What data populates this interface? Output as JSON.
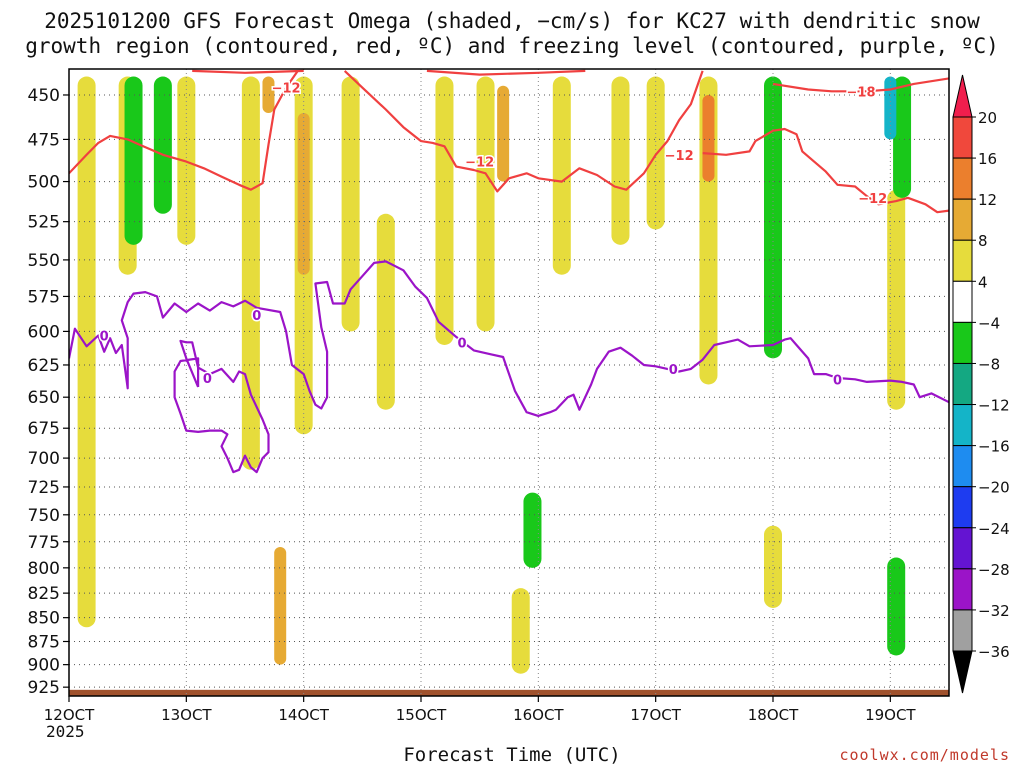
{
  "chart_data": {
    "type": "heatmap",
    "title": "2025101200 GFS Forecast Omega (shaded, −cm/s) for KC27 with dendritic snow",
    "subtitle": "growth region (contoured, red, ºC) and freezing level (contoured, purple, ºC)",
    "xlabel": "Forecast Time (UTC)",
    "x_year": "2025",
    "x_ticks": [
      "12OCT",
      "13OCT",
      "14OCT",
      "15OCT",
      "16OCT",
      "17OCT",
      "18OCT",
      "19OCT"
    ],
    "xlim": [
      0,
      7.5
    ],
    "y_ticks": [
      450,
      475,
      500,
      525,
      550,
      575,
      600,
      625,
      650,
      675,
      700,
      725,
      750,
      775,
      800,
      825,
      850,
      875,
      900,
      925
    ],
    "ylim": [
      436,
      935
    ],
    "y_axis": "pressure (hPa), reversed, log-p",
    "grid": true,
    "colorbar": {
      "levels": [
        "20",
        "16",
        "12",
        "8",
        "4",
        "−4",
        "−8",
        "−12",
        "−16",
        "−20",
        "−24",
        "−28",
        "−32",
        "−36"
      ],
      "colors": [
        "#f01e4d",
        "#f0483c",
        "#eb7f2d",
        "#e6aa34",
        "#e6dc3c",
        "#ffffff",
        "#19c81a",
        "#14a882",
        "#14b4c8",
        "#1e8cf0",
        "#1e3cf0",
        "#6414d2",
        "#9b14c8",
        "#a0a0a0",
        "#000000"
      ]
    },
    "shading_samples": [
      {
        "x": 0.15,
        "p0": 440,
        "p1": 860,
        "value": 5
      },
      {
        "x": 0.5,
        "p0": 440,
        "p1": 560,
        "value": 5
      },
      {
        "x": 0.55,
        "p0": 440,
        "p1": 540,
        "value": -6
      },
      {
        "x": 1.0,
        "p0": 440,
        "p1": 540,
        "value": 5
      },
      {
        "x": 1.55,
        "p0": 440,
        "p1": 710,
        "value": 5
      },
      {
        "x": 1.7,
        "p0": 440,
        "p1": 460,
        "value": 9
      },
      {
        "x": 2.0,
        "p0": 440,
        "p1": 680,
        "value": 6
      },
      {
        "x": 2.0,
        "p0": 460,
        "p1": 560,
        "value": 10
      },
      {
        "x": 2.4,
        "p0": 440,
        "p1": 600,
        "value": 5
      },
      {
        "x": 2.7,
        "p0": 520,
        "p1": 660,
        "value": 5
      },
      {
        "x": 3.2,
        "p0": 440,
        "p1": 610,
        "value": 6
      },
      {
        "x": 3.55,
        "p0": 440,
        "p1": 600,
        "value": 7
      },
      {
        "x": 3.7,
        "p0": 445,
        "p1": 500,
        "value": 10
      },
      {
        "x": 4.2,
        "p0": 440,
        "p1": 560,
        "value": 6
      },
      {
        "x": 4.7,
        "p0": 440,
        "p1": 540,
        "value": 6
      },
      {
        "x": 5.0,
        "p0": 440,
        "p1": 530,
        "value": 7
      },
      {
        "x": 5.45,
        "p0": 440,
        "p1": 640,
        "value": 6
      },
      {
        "x": 5.45,
        "p0": 450,
        "p1": 500,
        "value": 12
      },
      {
        "x": 6.0,
        "p0": 440,
        "p1": 620,
        "value": -6
      },
      {
        "x": 7.05,
        "p0": 505,
        "p1": 660,
        "value": 6
      },
      {
        "x": 7.1,
        "p0": 440,
        "p1": 510,
        "value": -6
      },
      {
        "x": 7.0,
        "p0": 440,
        "p1": 475,
        "value": -14
      },
      {
        "x": 7.05,
        "p0": 790,
        "p1": 890,
        "value": -6
      },
      {
        "x": 1.8,
        "p0": 780,
        "p1": 900,
        "value": 8
      },
      {
        "x": 3.85,
        "p0": 820,
        "p1": 910,
        "value": 5
      },
      {
        "x": 0.8,
        "p0": 440,
        "p1": 520,
        "value": -6
      },
      {
        "x": 6.0,
        "p0": 760,
        "p1": 840,
        "value": 5
      },
      {
        "x": 3.95,
        "p0": 730,
        "p1": 800,
        "value": -6
      }
    ],
    "series": [
      {
        "name": "-12",
        "color": "#f04040",
        "points": [
          [
            0,
            495
          ],
          [
            0.15,
            484
          ],
          [
            0.25,
            477
          ],
          [
            0.35,
            473
          ],
          [
            0.5,
            475
          ],
          [
            0.6,
            478
          ],
          [
            0.8,
            484
          ],
          [
            1.0,
            488
          ],
          [
            1.15,
            492
          ],
          [
            1.3,
            497
          ],
          [
            1.45,
            502
          ],
          [
            1.55,
            505
          ],
          [
            1.65,
            501
          ],
          [
            1.7,
            478
          ],
          [
            1.75,
            458
          ],
          [
            1.85,
            446
          ],
          [
            1.95,
            437
          ]
        ]
      },
      {
        "name": "-12",
        "color": "#f04040",
        "points": [
          [
            2.35,
            437
          ],
          [
            2.5,
            446
          ],
          [
            2.7,
            458
          ],
          [
            2.85,
            468
          ],
          [
            3.0,
            476
          ],
          [
            3.1,
            477
          ],
          [
            3.2,
            479
          ],
          [
            3.3,
            491
          ],
          [
            3.45,
            493
          ],
          [
            3.55,
            495
          ],
          [
            3.65,
            506
          ],
          [
            3.75,
            498
          ],
          [
            3.9,
            495
          ],
          [
            4.0,
            498
          ],
          [
            4.2,
            500
          ],
          [
            4.35,
            492
          ],
          [
            4.5,
            496
          ],
          [
            4.65,
            503
          ],
          [
            4.75,
            505
          ],
          [
            4.9,
            495
          ],
          [
            5.0,
            484
          ],
          [
            5.1,
            476
          ],
          [
            5.2,
            464
          ],
          [
            5.3,
            455
          ],
          [
            5.4,
            437
          ]
        ]
      },
      {
        "name": "-12",
        "color": "#f04040",
        "points": [
          [
            5.4,
            483
          ],
          [
            5.6,
            484
          ],
          [
            5.8,
            482
          ],
          [
            5.85,
            476
          ],
          [
            6.0,
            470
          ],
          [
            6.1,
            469
          ],
          [
            6.2,
            472
          ],
          [
            6.25,
            482
          ],
          [
            6.35,
            488
          ],
          [
            6.45,
            494
          ],
          [
            6.55,
            502
          ],
          [
            6.7,
            503
          ],
          [
            6.8,
            509
          ],
          [
            6.9,
            514
          ],
          [
            7.05,
            512
          ],
          [
            7.15,
            510
          ],
          [
            7.3,
            514
          ],
          [
            7.4,
            519
          ],
          [
            7.5,
            518
          ]
        ]
      },
      {
        "name": "-12",
        "color": "#f04040",
        "points": [
          [
            1.05,
            437
          ],
          [
            1.5,
            438
          ],
          [
            2.0,
            437
          ]
        ]
      },
      {
        "name": "-12",
        "color": "#f04040",
        "points": [
          [
            3.05,
            437
          ],
          [
            3.5,
            439
          ],
          [
            4.0,
            438
          ],
          [
            4.4,
            437
          ]
        ]
      },
      {
        "name": "-18",
        "color": "#f04040",
        "points": [
          [
            6.0,
            444
          ],
          [
            6.3,
            447
          ],
          [
            6.5,
            448
          ],
          [
            6.8,
            448
          ],
          [
            7.0,
            447
          ],
          [
            7.2,
            444
          ],
          [
            7.5,
            441
          ]
        ]
      },
      {
        "name": "0",
        "color": "#9b14c8",
        "points": [
          [
            0,
            620
          ],
          [
            0.05,
            598
          ],
          [
            0.15,
            611
          ],
          [
            0.25,
            603
          ],
          [
            0.3,
            615
          ],
          [
            0.35,
            605
          ],
          [
            0.4,
            616
          ],
          [
            0.45,
            610
          ],
          [
            0.5,
            643
          ],
          [
            0.5,
            605
          ],
          [
            0.45,
            592
          ],
          [
            0.5,
            579
          ],
          [
            0.55,
            573
          ],
          [
            0.65,
            572
          ],
          [
            0.75,
            575
          ],
          [
            0.8,
            590
          ],
          [
            0.9,
            580
          ],
          [
            1.0,
            586
          ],
          [
            1.1,
            580
          ],
          [
            1.2,
            585
          ],
          [
            1.3,
            579
          ],
          [
            1.4,
            582
          ],
          [
            1.5,
            578
          ],
          [
            1.6,
            583
          ],
          [
            1.8,
            586
          ],
          [
            1.85,
            600
          ],
          [
            1.9,
            625
          ],
          [
            2.0,
            632
          ],
          [
            2.05,
            645
          ],
          [
            2.1,
            656
          ],
          [
            2.15,
            659
          ],
          [
            2.2,
            650
          ],
          [
            2.2,
            615
          ],
          [
            2.15,
            597
          ],
          [
            2.1,
            566
          ],
          [
            2.2,
            565
          ],
          [
            2.25,
            580
          ],
          [
            2.35,
            580
          ],
          [
            2.4,
            570
          ],
          [
            2.5,
            561
          ],
          [
            2.6,
            552
          ],
          [
            2.7,
            551
          ],
          [
            2.85,
            557
          ],
          [
            2.95,
            568
          ],
          [
            3.05,
            576
          ],
          [
            3.15,
            593
          ],
          [
            3.3,
            604
          ],
          [
            3.45,
            614
          ],
          [
            3.6,
            617
          ],
          [
            3.7,
            619
          ],
          [
            3.8,
            645
          ],
          [
            3.9,
            662
          ],
          [
            4.0,
            665
          ],
          [
            4.1,
            662
          ],
          [
            4.15,
            660
          ],
          [
            4.25,
            650
          ],
          [
            4.3,
            648
          ],
          [
            4.35,
            660
          ],
          [
            4.45,
            640
          ],
          [
            4.5,
            628
          ],
          [
            4.6,
            615
          ],
          [
            4.7,
            612
          ],
          [
            4.8,
            618
          ],
          [
            4.9,
            625
          ],
          [
            5.0,
            626
          ],
          [
            5.1,
            628
          ],
          [
            5.2,
            630
          ],
          [
            5.3,
            628
          ],
          [
            5.4,
            621
          ],
          [
            5.5,
            610
          ],
          [
            5.6,
            608
          ],
          [
            5.7,
            606
          ],
          [
            5.8,
            611
          ],
          [
            6.0,
            610
          ],
          [
            6.1,
            606
          ],
          [
            6.15,
            605
          ],
          [
            6.2,
            610
          ],
          [
            6.3,
            620
          ],
          [
            6.35,
            632
          ],
          [
            6.45,
            632
          ],
          [
            6.55,
            635
          ],
          [
            6.7,
            636
          ],
          [
            6.8,
            638
          ],
          [
            7.0,
            637
          ],
          [
            7.1,
            638
          ],
          [
            7.2,
            640
          ],
          [
            7.25,
            650
          ],
          [
            7.35,
            647
          ],
          [
            7.5,
            654
          ]
        ]
      },
      {
        "name": "0",
        "color": "#9b14c8",
        "points": [
          [
            1.1,
            642
          ],
          [
            1.0,
            620
          ],
          [
            0.95,
            607
          ],
          [
            1.0,
            608
          ],
          [
            1.05,
            608
          ],
          [
            1.1,
            627
          ],
          [
            1.2,
            632
          ],
          [
            1.3,
            628
          ],
          [
            1.4,
            638
          ],
          [
            1.45,
            630
          ],
          [
            1.5,
            632
          ],
          [
            1.55,
            648
          ],
          [
            1.65,
            668
          ],
          [
            1.7,
            680
          ],
          [
            1.7,
            695
          ],
          [
            1.65,
            700
          ],
          [
            1.6,
            712
          ],
          [
            1.55,
            708
          ],
          [
            1.5,
            698
          ],
          [
            1.45,
            710
          ],
          [
            1.4,
            712
          ],
          [
            1.35,
            700
          ],
          [
            1.3,
            690
          ],
          [
            1.35,
            680
          ],
          [
            1.3,
            677
          ],
          [
            1.2,
            677
          ],
          [
            1.1,
            678
          ],
          [
            1.0,
            677
          ],
          [
            0.95,
            663
          ],
          [
            0.9,
            650
          ],
          [
            0.9,
            630
          ],
          [
            0.95,
            622
          ],
          [
            1.1,
            620
          ],
          [
            1.1,
            642
          ]
        ]
      }
    ],
    "contour_labels": [
      {
        "text": "0",
        "x": 0.3,
        "p": 603,
        "color": "#9b14c8"
      },
      {
        "text": "0",
        "x": 1.18,
        "p": 635,
        "color": "#9b14c8"
      },
      {
        "text": "0",
        "x": 1.6,
        "p": 588,
        "color": "#9b14c8"
      },
      {
        "text": "0",
        "x": 3.35,
        "p": 608,
        "color": "#9b14c8"
      },
      {
        "text": "0",
        "x": 5.15,
        "p": 628,
        "color": "#9b14c8"
      },
      {
        "text": "0",
        "x": 6.55,
        "p": 636,
        "color": "#9b14c8"
      },
      {
        "text": "−12",
        "x": 1.85,
        "p": 446,
        "color": "#f04040"
      },
      {
        "text": "−12",
        "x": 3.5,
        "p": 488,
        "color": "#f04040"
      },
      {
        "text": "−12",
        "x": 5.2,
        "p": 484,
        "color": "#f04040"
      },
      {
        "text": "−12",
        "x": 6.85,
        "p": 510,
        "color": "#f04040"
      },
      {
        "text": "−18",
        "x": 6.75,
        "p": 448,
        "color": "#f04040"
      }
    ]
  },
  "footer": {
    "credit": "coolwx.com/models"
  }
}
